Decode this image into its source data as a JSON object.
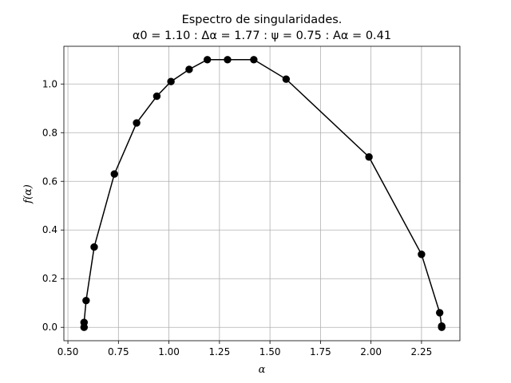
{
  "chart_data": {
    "type": "line",
    "title_line1": "Espectro de singularidades.",
    "title_line2": "α0 = 1.10 : Δα = 1.77 : ψ = 0.75 : Aα = 0.41",
    "xlabel": "α",
    "ylabel": "f(α)",
    "xlim": [
      0.48,
      2.44
    ],
    "ylim": [
      -0.055,
      1.155
    ],
    "xticks": [
      0.5,
      0.75,
      1.0,
      1.25,
      1.5,
      1.75,
      2.0,
      2.25
    ],
    "xtick_labels": [
      "0.50",
      "0.75",
      "1.00",
      "1.25",
      "1.50",
      "1.75",
      "2.00",
      "2.25"
    ],
    "yticks": [
      0.0,
      0.2,
      0.4,
      0.6,
      0.8,
      1.0
    ],
    "ytick_labels": [
      "0.0",
      "0.2",
      "0.4",
      "0.6",
      "0.8",
      "1.0"
    ],
    "grid": true,
    "line_color": "#000000",
    "marker": "circle",
    "series": [
      {
        "x": [
          0.58,
          0.58,
          0.59,
          0.63,
          0.73,
          0.84,
          0.94,
          1.01,
          1.1,
          1.19,
          1.29,
          1.42,
          1.58,
          1.99,
          2.25,
          2.34,
          2.35,
          2.35
        ],
        "y": [
          0.0,
          0.02,
          0.11,
          0.33,
          0.63,
          0.84,
          0.95,
          1.01,
          1.06,
          1.1,
          1.1,
          1.1,
          1.02,
          0.7,
          0.3,
          0.06,
          0.005,
          0.0
        ]
      }
    ]
  }
}
